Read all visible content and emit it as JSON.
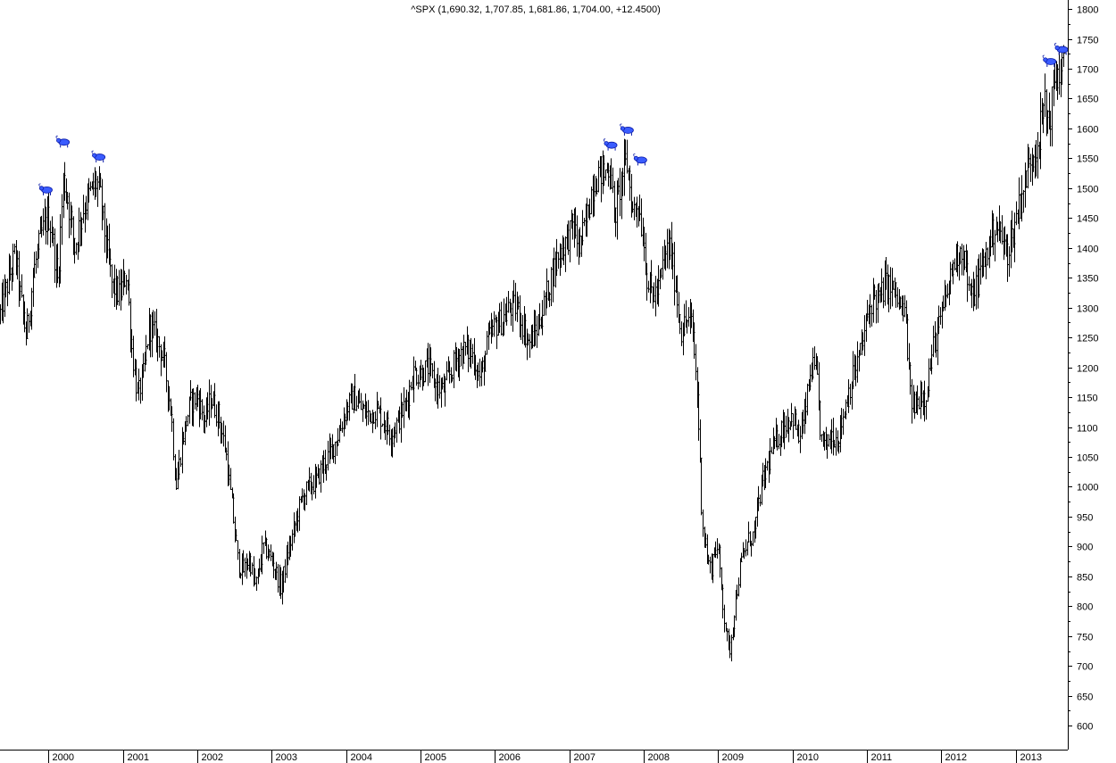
{
  "chart_data": {
    "type": "ohlc",
    "title": "^SPX (1,690.32, 1,707.85, 1,681.86, 1,704.00, +12.4500)",
    "x_tick_labels": [
      "2000",
      "2001",
      "2002",
      "2003",
      "2004",
      "2005",
      "2006",
      "2007",
      "2008",
      "2009",
      "2010",
      "2011",
      "2012",
      "2013"
    ],
    "x_range": [
      1999.35,
      2013.7
    ],
    "y_tick_labels": [
      600,
      650,
      700,
      750,
      800,
      850,
      900,
      950,
      1000,
      1050,
      1100,
      1150,
      1200,
      1250,
      1300,
      1350,
      1400,
      1450,
      1500,
      1550,
      1600,
      1650,
      1700,
      1750,
      1800
    ],
    "ylim": [
      560,
      1815
    ],
    "grid": false,
    "y_axis_position": "right",
    "bar_interval": "weekly",
    "path_points": [
      [
        1999.35,
        1290
      ],
      [
        1999.45,
        1340
      ],
      [
        1999.55,
        1390
      ],
      [
        1999.62,
        1320
      ],
      [
        1999.7,
        1250
      ],
      [
        1999.8,
        1360
      ],
      [
        1999.9,
        1420
      ],
      [
        2000.0,
        1455
      ],
      [
        2000.05,
        1420
      ],
      [
        2000.12,
        1345
      ],
      [
        2000.2,
        1520
      ],
      [
        2000.27,
        1470
      ],
      [
        2000.35,
        1400
      ],
      [
        2000.45,
        1460
      ],
      [
        2000.55,
        1490
      ],
      [
        2000.65,
        1510
      ],
      [
        2000.7,
        1480
      ],
      [
        2000.78,
        1400
      ],
      [
        2000.85,
        1340
      ],
      [
        2000.95,
        1320
      ],
      [
        2001.05,
        1360
      ],
      [
        2001.12,
        1230
      ],
      [
        2001.2,
        1150
      ],
      [
        2001.28,
        1190
      ],
      [
        2001.35,
        1270
      ],
      [
        2001.45,
        1250
      ],
      [
        2001.55,
        1210
      ],
      [
        2001.65,
        1120
      ],
      [
        2001.71,
        1000
      ],
      [
        2001.8,
        1080
      ],
      [
        2001.9,
        1140
      ],
      [
        2002.0,
        1150
      ],
      [
        2002.1,
        1110
      ],
      [
        2002.18,
        1150
      ],
      [
        2002.28,
        1120
      ],
      [
        2002.38,
        1060
      ],
      [
        2002.48,
        950
      ],
      [
        2002.55,
        870
      ],
      [
        2002.62,
        860
      ],
      [
        2002.7,
        880
      ],
      [
        2002.78,
        830
      ],
      [
        2002.88,
        900
      ],
      [
        2002.95,
        890
      ],
      [
        2003.05,
        860
      ],
      [
        2003.12,
        830
      ],
      [
        2003.2,
        880
      ],
      [
        2003.3,
        930
      ],
      [
        2003.4,
        980
      ],
      [
        2003.5,
        1000
      ],
      [
        2003.6,
        1010
      ],
      [
        2003.7,
        1040
      ],
      [
        2003.8,
        1060
      ],
      [
        2003.9,
        1090
      ],
      [
        2004.0,
        1130
      ],
      [
        2004.1,
        1150
      ],
      [
        2004.2,
        1130
      ],
      [
        2004.3,
        1120
      ],
      [
        2004.4,
        1130
      ],
      [
        2004.5,
        1110
      ],
      [
        2004.6,
        1090
      ],
      [
        2004.7,
        1110
      ],
      [
        2004.8,
        1140
      ],
      [
        2004.9,
        1190
      ],
      [
        2005.0,
        1190
      ],
      [
        2005.1,
        1200
      ],
      [
        2005.2,
        1170
      ],
      [
        2005.3,
        1160
      ],
      [
        2005.4,
        1190
      ],
      [
        2005.5,
        1220
      ],
      [
        2005.6,
        1230
      ],
      [
        2005.7,
        1220
      ],
      [
        2005.8,
        1180
      ],
      [
        2005.9,
        1240
      ],
      [
        2006.0,
        1270
      ],
      [
        2006.1,
        1280
      ],
      [
        2006.2,
        1300
      ],
      [
        2006.3,
        1300
      ],
      [
        2006.4,
        1260
      ],
      [
        2006.45,
        1240
      ],
      [
        2006.55,
        1260
      ],
      [
        2006.65,
        1300
      ],
      [
        2006.75,
        1350
      ],
      [
        2006.85,
        1390
      ],
      [
        2006.95,
        1410
      ],
      [
        2007.05,
        1440
      ],
      [
        2007.12,
        1400
      ],
      [
        2007.2,
        1430
      ],
      [
        2007.3,
        1500
      ],
      [
        2007.4,
        1530
      ],
      [
        2007.45,
        1520
      ],
      [
        2007.55,
        1540
      ],
      [
        2007.6,
        1450
      ],
      [
        2007.65,
        1480
      ],
      [
        2007.72,
        1530
      ],
      [
        2007.78,
        1540
      ],
      [
        2007.85,
        1460
      ],
      [
        2007.92,
        1480
      ],
      [
        2008.0,
        1410
      ],
      [
        2008.05,
        1340
      ],
      [
        2008.12,
        1320
      ],
      [
        2008.2,
        1330
      ],
      [
        2008.28,
        1390
      ],
      [
        2008.35,
        1400
      ],
      [
        2008.42,
        1340
      ],
      [
        2008.5,
        1260
      ],
      [
        2008.58,
        1280
      ],
      [
        2008.65,
        1270
      ],
      [
        2008.72,
        1150
      ],
      [
        2008.78,
        950
      ],
      [
        2008.85,
        880
      ],
      [
        2008.9,
        860
      ],
      [
        2008.95,
        900
      ],
      [
        2009.0,
        890
      ],
      [
        2009.08,
        780
      ],
      [
        2009.15,
        720
      ],
      [
        2009.22,
        800
      ],
      [
        2009.3,
        870
      ],
      [
        2009.4,
        910
      ],
      [
        2009.48,
        920
      ],
      [
        2009.55,
        980
      ],
      [
        2009.62,
        1020
      ],
      [
        2009.72,
        1060
      ],
      [
        2009.82,
        1090
      ],
      [
        2009.92,
        1110
      ],
      [
        2010.0,
        1120
      ],
      [
        2010.08,
        1080
      ],
      [
        2010.15,
        1110
      ],
      [
        2010.25,
        1200
      ],
      [
        2010.32,
        1190
      ],
      [
        2010.38,
        1080
      ],
      [
        2010.45,
        1070
      ],
      [
        2010.52,
        1090
      ],
      [
        2010.6,
        1080
      ],
      [
        2010.68,
        1120
      ],
      [
        2010.75,
        1160
      ],
      [
        2010.85,
        1200
      ],
      [
        2010.92,
        1230
      ],
      [
        2011.0,
        1280
      ],
      [
        2011.08,
        1320
      ],
      [
        2011.15,
        1310
      ],
      [
        2011.25,
        1340
      ],
      [
        2011.35,
        1330
      ],
      [
        2011.45,
        1300
      ],
      [
        2011.52,
        1280
      ],
      [
        2011.58,
        1150
      ],
      [
        2011.65,
        1130
      ],
      [
        2011.72,
        1160
      ],
      [
        2011.78,
        1150
      ],
      [
        2011.88,
        1230
      ],
      [
        2011.95,
        1260
      ],
      [
        2012.05,
        1310
      ],
      [
        2012.15,
        1370
      ],
      [
        2012.25,
        1400
      ],
      [
        2012.32,
        1380
      ],
      [
        2012.38,
        1310
      ],
      [
        2012.45,
        1330
      ],
      [
        2012.55,
        1370
      ],
      [
        2012.65,
        1410
      ],
      [
        2012.72,
        1440
      ],
      [
        2012.8,
        1420
      ],
      [
        2012.88,
        1390
      ],
      [
        2012.95,
        1420
      ],
      [
        2013.05,
        1480
      ],
      [
        2013.12,
        1510
      ],
      [
        2013.2,
        1550
      ],
      [
        2013.3,
        1580
      ],
      [
        2013.38,
        1640
      ],
      [
        2013.45,
        1610
      ],
      [
        2013.52,
        1680
      ],
      [
        2013.6,
        1700
      ],
      [
        2013.65,
        1704
      ]
    ],
    "top_markers": [
      {
        "x": 1999.98,
        "value": 1485
      },
      {
        "x": 2000.21,
        "value": 1565
      },
      {
        "x": 2000.69,
        "value": 1540
      },
      {
        "x": 2007.57,
        "value": 1560
      },
      {
        "x": 2007.79,
        "value": 1585
      },
      {
        "x": 2007.97,
        "value": 1535
      },
      {
        "x": 2013.47,
        "value": 1700
      },
      {
        "x": 2013.63,
        "value": 1720
      }
    ]
  }
}
